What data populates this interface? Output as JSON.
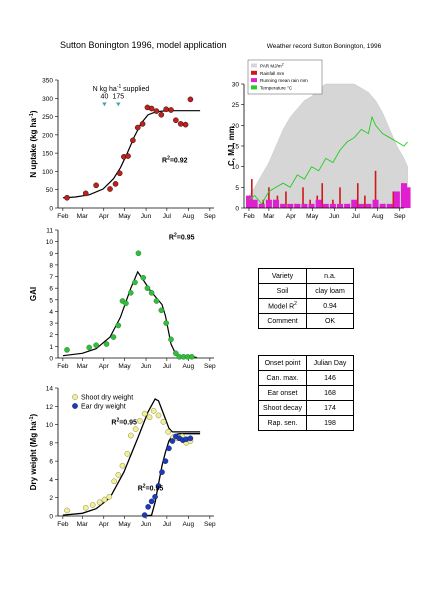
{
  "page_title": "Sutton Bonington 1996, model application",
  "annotations": {
    "n_supplied_label": "N kg ha",
    "n_supplied_exp": "-1",
    "n_supplied_suffix": " supplied",
    "n_amounts": [
      "40",
      "175"
    ]
  },
  "info_table": [
    {
      "key": "Variety",
      "value": "n.a."
    },
    {
      "key": "Soil",
      "value": "clay loam"
    },
    {
      "key": "Model R",
      "key_sup": "2",
      "value": "0.94"
    },
    {
      "key": "Comment",
      "value": "OK"
    }
  ],
  "onset_table": {
    "headers": [
      "Onset point",
      "Julian Day"
    ],
    "rows": [
      {
        "key": "Can. max.",
        "value": "146"
      },
      {
        "key": "Ear onset",
        "value": "168"
      },
      {
        "key": "Shoot decay",
        "value": "174"
      },
      {
        "key": "Rap. sen.",
        "value": "198"
      }
    ]
  },
  "colors": {
    "n_points": "#c0201a",
    "gai_points": "#2fbf3a",
    "shoot_points": "#f2ef9a",
    "ear_points": "#1f3ab5",
    "marker": "#4aa0a8",
    "par": "#d6d6d6",
    "rainfall": "#d01818",
    "running_rain": "#e020d0",
    "temperature": "#22cc22"
  },
  "chart_data": [
    {
      "type": "scatter",
      "ylabel": "N uptake (kg ha",
      "ylabel_exp": "-1",
      "ylabel_suffix": ")",
      "x_ticks": [
        "Feb",
        "Mar",
        "Apr",
        "May",
        "Jun",
        "Jul",
        "Aug",
        "Sep"
      ],
      "ylim": [
        0,
        350
      ],
      "y_ticks": [
        0,
        50,
        100,
        150,
        200,
        250,
        300,
        350
      ],
      "r2_label": "R",
      "r2_exp": "2",
      "r2_value": "=0.92",
      "marker_days": [
        92,
        112
      ],
      "points": [
        [
          38,
          28
        ],
        [
          65,
          40
        ],
        [
          80,
          62
        ],
        [
          100,
          52
        ],
        [
          108,
          66
        ],
        [
          114,
          95
        ],
        [
          120,
          140
        ],
        [
          126,
          142
        ],
        [
          133,
          185
        ],
        [
          140,
          220
        ],
        [
          147,
          230
        ],
        [
          154,
          275
        ],
        [
          160,
          272
        ],
        [
          167,
          265
        ],
        [
          174,
          255
        ],
        [
          181,
          270
        ],
        [
          188,
          268
        ],
        [
          195,
          240
        ],
        [
          202,
          230
        ],
        [
          209,
          228
        ],
        [
          216,
          297
        ]
      ],
      "model": [
        [
          32,
          28
        ],
        [
          50,
          30
        ],
        [
          70,
          36
        ],
        [
          90,
          52
        ],
        [
          105,
          80
        ],
        [
          115,
          110
        ],
        [
          125,
          150
        ],
        [
          135,
          195
        ],
        [
          145,
          232
        ],
        [
          155,
          255
        ],
        [
          165,
          262
        ],
        [
          175,
          265
        ],
        [
          185,
          266
        ],
        [
          200,
          266
        ],
        [
          230,
          266
        ]
      ]
    },
    {
      "type": "bar",
      "title": "Weather record Sutton Bonington, 1996",
      "ylabel": "C, MJ, mm",
      "x_ticks": [
        "Feb",
        "Mar",
        "Apr",
        "May",
        "Jun",
        "Jul",
        "Aug",
        "Sep"
      ],
      "ylim": [
        0,
        30
      ],
      "y_ticks": [
        0,
        5,
        10,
        15,
        20,
        25,
        30
      ],
      "legend": [
        {
          "label": "PAR MJ/m",
          "exp": "2",
          "kind": "par"
        },
        {
          "label": "Rainfall mm",
          "kind": "rainfall"
        },
        {
          "label": "Running mean rain mm",
          "kind": "running_rain"
        },
        {
          "label": "Temperature °C",
          "kind": "temperature"
        }
      ],
      "par_envelope": [
        [
          32,
          3
        ],
        [
          40,
          5
        ],
        [
          50,
          8
        ],
        [
          60,
          11
        ],
        [
          70,
          15
        ],
        [
          80,
          19
        ],
        [
          90,
          22
        ],
        [
          100,
          24
        ],
        [
          110,
          26
        ],
        [
          120,
          27
        ],
        [
          130,
          29
        ],
        [
          140,
          30
        ],
        [
          150,
          30
        ],
        [
          160,
          30
        ],
        [
          170,
          30
        ],
        [
          180,
          30
        ],
        [
          190,
          29
        ],
        [
          200,
          28
        ],
        [
          210,
          26
        ],
        [
          220,
          23
        ],
        [
          230,
          19
        ],
        [
          240,
          15
        ],
        [
          250,
          12
        ],
        [
          255,
          10
        ]
      ],
      "temperature": [
        [
          32,
          2
        ],
        [
          40,
          3
        ],
        [
          50,
          1
        ],
        [
          60,
          4
        ],
        [
          70,
          5
        ],
        [
          80,
          6
        ],
        [
          90,
          5
        ],
        [
          100,
          8
        ],
        [
          110,
          7
        ],
        [
          120,
          10
        ],
        [
          130,
          9
        ],
        [
          140,
          12
        ],
        [
          150,
          11
        ],
        [
          160,
          14
        ],
        [
          170,
          16
        ],
        [
          180,
          17
        ],
        [
          190,
          19
        ],
        [
          200,
          18
        ],
        [
          205,
          22
        ],
        [
          210,
          20
        ],
        [
          215,
          19
        ],
        [
          220,
          18
        ],
        [
          230,
          17
        ],
        [
          240,
          16
        ],
        [
          250,
          15
        ],
        [
          255,
          16
        ]
      ],
      "rainfall": [
        [
          36,
          7
        ],
        [
          52,
          2
        ],
        [
          60,
          5
        ],
        [
          72,
          3
        ],
        [
          84,
          4
        ],
        [
          97,
          1
        ],
        [
          108,
          5
        ],
        [
          118,
          2
        ],
        [
          128,
          3
        ],
        [
          135,
          6
        ],
        [
          150,
          2
        ],
        [
          160,
          5
        ],
        [
          173,
          1
        ],
        [
          185,
          6
        ],
        [
          195,
          3
        ],
        [
          210,
          9
        ],
        [
          222,
          1
        ],
        [
          235,
          4
        ],
        [
          248,
          6
        ],
        [
          252,
          3
        ]
      ],
      "running_rain": [
        [
          32,
          3
        ],
        [
          40,
          2
        ],
        [
          50,
          1
        ],
        [
          60,
          2
        ],
        [
          70,
          2
        ],
        [
          80,
          1
        ],
        [
          90,
          1
        ],
        [
          100,
          1
        ],
        [
          110,
          1
        ],
        [
          120,
          1
        ],
        [
          130,
          2
        ],
        [
          140,
          1
        ],
        [
          150,
          1
        ],
        [
          160,
          1
        ],
        [
          170,
          1
        ],
        [
          180,
          2
        ],
        [
          190,
          1
        ],
        [
          200,
          1
        ],
        [
          210,
          2
        ],
        [
          220,
          1
        ],
        [
          230,
          1
        ],
        [
          240,
          4
        ],
        [
          250,
          6
        ],
        [
          255,
          5
        ]
      ]
    },
    {
      "type": "scatter",
      "ylabel": "GAI",
      "x_ticks": [
        "Feb",
        "Mar",
        "Apr",
        "May",
        "Jun",
        "Jul",
        "Aug",
        "Sep"
      ],
      "ylim": [
        0,
        11
      ],
      "y_ticks": [
        0,
        1,
        2,
        3,
        4,
        5,
        6,
        7,
        8,
        9,
        10,
        11
      ],
      "r2_label": "R",
      "r2_exp": "2",
      "r2_value": "=0.95",
      "points": [
        [
          38,
          0.7
        ],
        [
          70,
          0.9
        ],
        [
          80,
          1.1
        ],
        [
          95,
          1.2
        ],
        [
          105,
          1.8
        ],
        [
          112,
          2.8
        ],
        [
          118,
          4.9
        ],
        [
          123,
          4.7
        ],
        [
          130,
          5.6
        ],
        [
          136,
          6.5
        ],
        [
          141,
          9.0
        ],
        [
          148,
          6.9
        ],
        [
          154,
          6.0
        ],
        [
          160,
          5.6
        ],
        [
          167,
          4.9
        ],
        [
          174,
          4.1
        ],
        [
          181,
          3.0
        ],
        [
          188,
          1.6
        ],
        [
          195,
          0.4
        ],
        [
          200,
          0.1
        ],
        [
          206,
          0.1
        ],
        [
          212,
          0.1
        ],
        [
          218,
          0.1
        ]
      ],
      "model": [
        [
          32,
          0.2
        ],
        [
          60,
          0.4
        ],
        [
          80,
          0.8
        ],
        [
          100,
          1.8
        ],
        [
          115,
          3.5
        ],
        [
          130,
          6.0
        ],
        [
          140,
          7.4
        ],
        [
          148,
          6.7
        ],
        [
          158,
          5.8
        ],
        [
          168,
          5.1
        ],
        [
          175,
          4.6
        ],
        [
          180,
          3.6
        ],
        [
          188,
          1.2
        ],
        [
          195,
          0.3
        ],
        [
          205,
          0.1
        ],
        [
          225,
          0.05
        ]
      ]
    },
    {
      "type": "scatter",
      "ylabel": "Dry weight (Mg ha",
      "ylabel_exp": "-1",
      "ylabel_suffix": ")",
      "x_ticks": [
        "Feb",
        "Mar",
        "Apr",
        "May",
        "Jun",
        "Jul",
        "Aug",
        "Sep"
      ],
      "ylim": [
        0,
        14
      ],
      "y_ticks": [
        0,
        2,
        4,
        6,
        8,
        10,
        12,
        14
      ],
      "legend": [
        {
          "label": "Shoot dry weight",
          "kind": "shoot_points"
        },
        {
          "label": "Ear dry weight",
          "kind": "ear_points"
        }
      ],
      "r2_shoot": {
        "label": "R",
        "exp": "2",
        "value": "=0.95"
      },
      "r2_ear": {
        "label": "R",
        "exp": "2",
        "value": "=0.95"
      },
      "series": [
        {
          "name": "Shoot dry weight",
          "points": [
            [
              38,
              0.6
            ],
            [
              65,
              0.9
            ],
            [
              75,
              1.2
            ],
            [
              85,
              1.5
            ],
            [
              92,
              1.8
            ],
            [
              99,
              2.1
            ],
            [
              106,
              3.8
            ],
            [
              112,
              4.5
            ],
            [
              118,
              5.5
            ],
            [
              125,
              6.8
            ],
            [
              130,
              8.8
            ],
            [
              137,
              9.5
            ],
            [
              143,
              10.4
            ],
            [
              150,
              11.2
            ],
            [
              157,
              10.8
            ],
            [
              163,
              11.5
            ],
            [
              170,
              11.0
            ],
            [
              177,
              10.3
            ],
            [
              184,
              9.2
            ],
            [
              191,
              8.6
            ],
            [
              197,
              8.5
            ],
            [
              204,
              8.7
            ],
            [
              210,
              8.0
            ],
            [
              216,
              8.2
            ]
          ]
        },
        {
          "name": "Ear dry weight",
          "points": [
            [
              150,
              0.1
            ],
            [
              155,
              1.0
            ],
            [
              160,
              1.6
            ],
            [
              165,
              2.1
            ],
            [
              170,
              3.3
            ],
            [
              175,
              4.8
            ],
            [
              180,
              6.0
            ],
            [
              185,
              7.4
            ],
            [
              190,
              8.2
            ],
            [
              195,
              8.7
            ],
            [
              200,
              8.5
            ],
            [
              205,
              8.3
            ],
            [
              210,
              8.4
            ],
            [
              216,
              8.5
            ]
          ]
        }
      ],
      "model_shoot": [
        [
          32,
          0.1
        ],
        [
          60,
          0.3
        ],
        [
          80,
          0.8
        ],
        [
          100,
          2.0
        ],
        [
          120,
          4.8
        ],
        [
          140,
          8.5
        ],
        [
          155,
          11.4
        ],
        [
          165,
          12.8
        ],
        [
          170,
          12.6
        ],
        [
          178,
          11.0
        ],
        [
          185,
          9.6
        ],
        [
          190,
          9.2
        ],
        [
          230,
          9.2
        ]
      ],
      "model_ear": [
        [
          150,
          0
        ],
        [
          160,
          0.1
        ],
        [
          165,
          1.5
        ],
        [
          170,
          3.5
        ],
        [
          175,
          5.5
        ],
        [
          180,
          7.0
        ],
        [
          185,
          8.2
        ],
        [
          190,
          8.8
        ],
        [
          200,
          9.0
        ],
        [
          230,
          9.0
        ]
      ]
    }
  ]
}
